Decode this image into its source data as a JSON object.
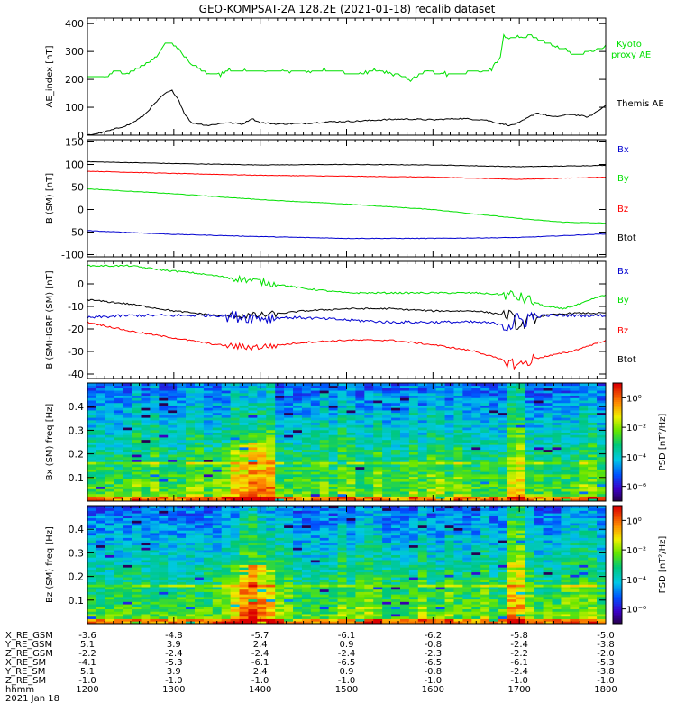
{
  "title": "GEO-KOMPSAT-2A 128.2E (2021-01-18) recalib dataset",
  "colors": {
    "black": "#000000",
    "red": "#ff0000",
    "green": "#00e000",
    "blue": "#0000d0"
  },
  "chart_data": [
    {
      "type": "line",
      "ylabel": "AE_index [nT]",
      "ylim": [
        0,
        420
      ],
      "yticks": [
        "0",
        "100",
        "200",
        "300",
        "400"
      ],
      "ytick_values": [
        0,
        100,
        200,
        300,
        400
      ],
      "xlim": [
        1200,
        1800
      ],
      "series": [
        {
          "name": "Kyoto proxy AE",
          "color": "#00e000",
          "x": [
            1200,
            1222,
            1232,
            1245,
            1268,
            1283,
            1290,
            1298,
            1305,
            1318,
            1340,
            1360,
            1390,
            1420,
            1450,
            1480,
            1510,
            1540,
            1560,
            1572,
            1590,
            1610,
            1640,
            1665,
            1678,
            1682,
            1695,
            1712,
            1725,
            1736,
            1750,
            1765,
            1780,
            1795,
            1800
          ],
          "y": [
            210,
            210,
            230,
            220,
            255,
            290,
            325,
            328,
            310,
            260,
            220,
            225,
            230,
            225,
            225,
            230,
            222,
            228,
            220,
            195,
            228,
            222,
            225,
            232,
            275,
            355,
            345,
            358,
            340,
            325,
            310,
            285,
            300,
            310,
            318
          ]
        },
        {
          "name": "Themis AE",
          "color": "#000000",
          "x": [
            1200,
            1218,
            1235,
            1250,
            1265,
            1280,
            1290,
            1298,
            1305,
            1312,
            1320,
            1340,
            1360,
            1380,
            1390,
            1400,
            1420,
            1450,
            1480,
            1510,
            1540,
            1570,
            1600,
            1630,
            1660,
            1680,
            1690,
            1700,
            1720,
            1740,
            1760,
            1780,
            1795,
            1800
          ],
          "y": [
            0,
            10,
            25,
            40,
            70,
            120,
            150,
            160,
            130,
            80,
            45,
            35,
            45,
            40,
            60,
            45,
            40,
            42,
            48,
            50,
            55,
            58,
            55,
            60,
            55,
            40,
            35,
            45,
            80,
            65,
            75,
            65,
            95,
            110
          ]
        }
      ]
    },
    {
      "type": "line",
      "ylabel": "B (SM) [nT]",
      "ylim": [
        -105,
        155
      ],
      "yticks": [
        "-100",
        "-50",
        "0",
        "50",
        "100",
        "150"
      ],
      "ytick_values": [
        -100,
        -50,
        0,
        50,
        100,
        150
      ],
      "xlim": [
        1200,
        1800
      ],
      "legend": [
        "Bx",
        "By",
        "Bz",
        "Btot"
      ],
      "legend_colors": [
        "#0000d0",
        "#00e000",
        "#ff0000",
        "#000000"
      ],
      "series": [
        {
          "color": "#000000",
          "x": [
            1200,
            1300,
            1400,
            1500,
            1600,
            1700,
            1800
          ],
          "y": [
            106,
            102,
            99,
            100,
            99,
            95,
            98
          ]
        },
        {
          "color": "#ff0000",
          "x": [
            1200,
            1300,
            1400,
            1500,
            1600,
            1700,
            1800
          ],
          "y": [
            85,
            80,
            76,
            74,
            72,
            67,
            72
          ]
        },
        {
          "color": "#00e000",
          "x": [
            1200,
            1300,
            1400,
            1500,
            1600,
            1700,
            1750,
            1800
          ],
          "y": [
            46,
            35,
            22,
            12,
            0,
            -20,
            -28,
            -30
          ]
        },
        {
          "color": "#0000d0",
          "x": [
            1200,
            1300,
            1400,
            1500,
            1600,
            1700,
            1800
          ],
          "y": [
            -47,
            -55,
            -60,
            -64,
            -64,
            -62,
            -54
          ]
        }
      ]
    },
    {
      "type": "line",
      "ylabel": "B (SM)-IGRF (SM) [nT]",
      "ylim": [
        -42,
        10
      ],
      "yticks": [
        "-40",
        "-30",
        "-20",
        "-10",
        "0"
      ],
      "ytick_values": [
        -40,
        -30,
        -20,
        -10,
        0
      ],
      "xlim": [
        1200,
        1800
      ],
      "legend": [
        "Bx",
        "By",
        "Bz",
        "Btot"
      ],
      "legend_colors": [
        "#0000d0",
        "#00e000",
        "#ff0000",
        "#000000"
      ],
      "series": [
        {
          "color": "#00e000",
          "x": [
            1200,
            1250,
            1290,
            1320,
            1360,
            1400,
            1450,
            1500,
            1550,
            1600,
            1650,
            1690,
            1710,
            1730,
            1750,
            1770,
            1790,
            1800
          ],
          "y": [
            8,
            8,
            6,
            5,
            3,
            1,
            -2,
            -4,
            -4,
            -4,
            -4,
            -5,
            -7,
            -10,
            -11,
            -9,
            -6,
            -5
          ]
        },
        {
          "color": "#000000",
          "x": [
            1200,
            1250,
            1300,
            1350,
            1400,
            1450,
            1500,
            1550,
            1600,
            1650,
            1690,
            1700,
            1710,
            1730,
            1760,
            1800
          ],
          "y": [
            -7,
            -9,
            -12,
            -14,
            -14,
            -12,
            -11,
            -11,
            -12,
            -12,
            -14,
            -20,
            -16,
            -14,
            -13,
            -13
          ]
        },
        {
          "color": "#0000d0",
          "x": [
            1200,
            1250,
            1300,
            1350,
            1400,
            1450,
            1500,
            1550,
            1600,
            1650,
            1690,
            1710,
            1730,
            1760,
            1800
          ],
          "y": [
            -15,
            -14,
            -14,
            -14,
            -15,
            -15,
            -16,
            -17,
            -17,
            -17,
            -18,
            -15,
            -14,
            -14,
            -14
          ]
        },
        {
          "color": "#ff0000",
          "x": [
            1200,
            1250,
            1300,
            1350,
            1380,
            1400,
            1450,
            1500,
            1550,
            1600,
            1650,
            1690,
            1700,
            1720,
            1760,
            1800
          ],
          "y": [
            -17,
            -21,
            -24,
            -27,
            -28,
            -28,
            -26,
            -25,
            -25,
            -27,
            -30,
            -35,
            -36,
            -33,
            -30,
            -25
          ]
        }
      ]
    },
    {
      "type": "heatmap",
      "ylabel": "Bx (SM) freq [Hz]",
      "ylim": [
        0,
        0.5
      ],
      "yticks": [
        "0.1",
        "0.2",
        "0.3",
        "0.4"
      ],
      "ytick_values": [
        0.1,
        0.2,
        0.3,
        0.4
      ],
      "xlim": [
        1200,
        1800
      ],
      "colorbar": {
        "label": "PSD [nT²/Hz]",
        "ticks": [
          "10⁰",
          "10⁻²",
          "10⁻⁴",
          "10⁻⁶"
        ],
        "log_range": [
          -7,
          1
        ]
      }
    },
    {
      "type": "heatmap",
      "ylabel": "Bz (SM) freq [Hz]",
      "ylim": [
        0,
        0.5
      ],
      "yticks": [
        "0.1",
        "0.2",
        "0.3",
        "0.4"
      ],
      "ytick_values": [
        0.1,
        0.2,
        0.3,
        0.4
      ],
      "xlim": [
        1200,
        1800
      ],
      "colorbar": {
        "label": "PSD [nT²/Hz]",
        "ticks": [
          "10⁰",
          "10⁻²",
          "10⁻⁴",
          "10⁻⁶"
        ],
        "log_range": [
          -7,
          1
        ]
      }
    }
  ],
  "ephemeris": {
    "labels": [
      "X_RE_GSM",
      "Y_RE_GSM",
      "Z_RE_GSM",
      "X_RE_SM",
      "Y_RE_SM",
      "Z_RE_SM",
      "hhmm",
      "2021 Jan 18"
    ],
    "columns": [
      [
        "-3.6",
        "5.1",
        "-2.2",
        "-4.1",
        "5.1",
        "-1.0",
        "1200"
      ],
      [
        "-4.8",
        "3.9",
        "-2.4",
        "-5.3",
        "3.9",
        "-1.0",
        "1300"
      ],
      [
        "-5.7",
        "2.4",
        "-2.4",
        "-6.1",
        "2.4",
        "-1.0",
        "1400"
      ],
      [
        "-6.1",
        "0.9",
        "-2.4",
        "-6.5",
        "0.9",
        "-1.0",
        "1500"
      ],
      [
        "-6.2",
        "-0.8",
        "-2.3",
        "-6.5",
        "-0.8",
        "-1.0",
        "1600"
      ],
      [
        "-5.8",
        "-2.4",
        "-2.2",
        "-6.1",
        "-2.4",
        "-1.0",
        "1700"
      ],
      [
        "-5.0",
        "-3.8",
        "-2.0",
        "-5.3",
        "-3.8",
        "-1.0",
        "1800"
      ]
    ]
  }
}
